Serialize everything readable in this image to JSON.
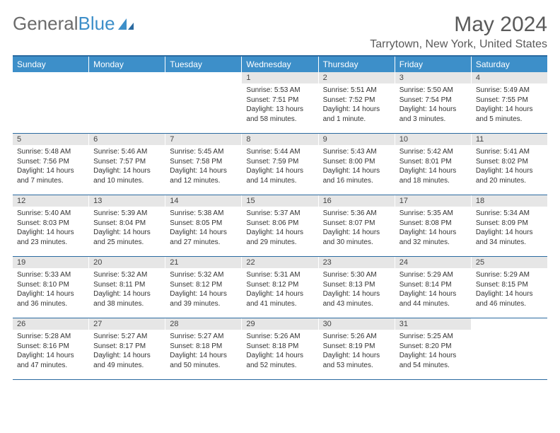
{
  "logo": {
    "text1": "General",
    "text2": "Blue"
  },
  "title": "May 2024",
  "location": "Tarrytown, New York, United States",
  "colors": {
    "header_bg": "#3d8fc9",
    "header_text": "#ffffff",
    "border": "#2a6aa0",
    "daynum_bg": "#e6e6e6",
    "logo_gray": "#6b6b6b",
    "logo_blue": "#3d8fc9",
    "title_color": "#5a5a5a"
  },
  "weekdays": [
    "Sunday",
    "Monday",
    "Tuesday",
    "Wednesday",
    "Thursday",
    "Friday",
    "Saturday"
  ],
  "weeks": [
    [
      {
        "n": "",
        "sr": "",
        "ss": "",
        "dl": ""
      },
      {
        "n": "",
        "sr": "",
        "ss": "",
        "dl": ""
      },
      {
        "n": "",
        "sr": "",
        "ss": "",
        "dl": ""
      },
      {
        "n": "1",
        "sr": "Sunrise: 5:53 AM",
        "ss": "Sunset: 7:51 PM",
        "dl": "Daylight: 13 hours and 58 minutes."
      },
      {
        "n": "2",
        "sr": "Sunrise: 5:51 AM",
        "ss": "Sunset: 7:52 PM",
        "dl": "Daylight: 14 hours and 1 minute."
      },
      {
        "n": "3",
        "sr": "Sunrise: 5:50 AM",
        "ss": "Sunset: 7:54 PM",
        "dl": "Daylight: 14 hours and 3 minutes."
      },
      {
        "n": "4",
        "sr": "Sunrise: 5:49 AM",
        "ss": "Sunset: 7:55 PM",
        "dl": "Daylight: 14 hours and 5 minutes."
      }
    ],
    [
      {
        "n": "5",
        "sr": "Sunrise: 5:48 AM",
        "ss": "Sunset: 7:56 PM",
        "dl": "Daylight: 14 hours and 7 minutes."
      },
      {
        "n": "6",
        "sr": "Sunrise: 5:46 AM",
        "ss": "Sunset: 7:57 PM",
        "dl": "Daylight: 14 hours and 10 minutes."
      },
      {
        "n": "7",
        "sr": "Sunrise: 5:45 AM",
        "ss": "Sunset: 7:58 PM",
        "dl": "Daylight: 14 hours and 12 minutes."
      },
      {
        "n": "8",
        "sr": "Sunrise: 5:44 AM",
        "ss": "Sunset: 7:59 PM",
        "dl": "Daylight: 14 hours and 14 minutes."
      },
      {
        "n": "9",
        "sr": "Sunrise: 5:43 AM",
        "ss": "Sunset: 8:00 PM",
        "dl": "Daylight: 14 hours and 16 minutes."
      },
      {
        "n": "10",
        "sr": "Sunrise: 5:42 AM",
        "ss": "Sunset: 8:01 PM",
        "dl": "Daylight: 14 hours and 18 minutes."
      },
      {
        "n": "11",
        "sr": "Sunrise: 5:41 AM",
        "ss": "Sunset: 8:02 PM",
        "dl": "Daylight: 14 hours and 20 minutes."
      }
    ],
    [
      {
        "n": "12",
        "sr": "Sunrise: 5:40 AM",
        "ss": "Sunset: 8:03 PM",
        "dl": "Daylight: 14 hours and 23 minutes."
      },
      {
        "n": "13",
        "sr": "Sunrise: 5:39 AM",
        "ss": "Sunset: 8:04 PM",
        "dl": "Daylight: 14 hours and 25 minutes."
      },
      {
        "n": "14",
        "sr": "Sunrise: 5:38 AM",
        "ss": "Sunset: 8:05 PM",
        "dl": "Daylight: 14 hours and 27 minutes."
      },
      {
        "n": "15",
        "sr": "Sunrise: 5:37 AM",
        "ss": "Sunset: 8:06 PM",
        "dl": "Daylight: 14 hours and 29 minutes."
      },
      {
        "n": "16",
        "sr": "Sunrise: 5:36 AM",
        "ss": "Sunset: 8:07 PM",
        "dl": "Daylight: 14 hours and 30 minutes."
      },
      {
        "n": "17",
        "sr": "Sunrise: 5:35 AM",
        "ss": "Sunset: 8:08 PM",
        "dl": "Daylight: 14 hours and 32 minutes."
      },
      {
        "n": "18",
        "sr": "Sunrise: 5:34 AM",
        "ss": "Sunset: 8:09 PM",
        "dl": "Daylight: 14 hours and 34 minutes."
      }
    ],
    [
      {
        "n": "19",
        "sr": "Sunrise: 5:33 AM",
        "ss": "Sunset: 8:10 PM",
        "dl": "Daylight: 14 hours and 36 minutes."
      },
      {
        "n": "20",
        "sr": "Sunrise: 5:32 AM",
        "ss": "Sunset: 8:11 PM",
        "dl": "Daylight: 14 hours and 38 minutes."
      },
      {
        "n": "21",
        "sr": "Sunrise: 5:32 AM",
        "ss": "Sunset: 8:12 PM",
        "dl": "Daylight: 14 hours and 39 minutes."
      },
      {
        "n": "22",
        "sr": "Sunrise: 5:31 AM",
        "ss": "Sunset: 8:12 PM",
        "dl": "Daylight: 14 hours and 41 minutes."
      },
      {
        "n": "23",
        "sr": "Sunrise: 5:30 AM",
        "ss": "Sunset: 8:13 PM",
        "dl": "Daylight: 14 hours and 43 minutes."
      },
      {
        "n": "24",
        "sr": "Sunrise: 5:29 AM",
        "ss": "Sunset: 8:14 PM",
        "dl": "Daylight: 14 hours and 44 minutes."
      },
      {
        "n": "25",
        "sr": "Sunrise: 5:29 AM",
        "ss": "Sunset: 8:15 PM",
        "dl": "Daylight: 14 hours and 46 minutes."
      }
    ],
    [
      {
        "n": "26",
        "sr": "Sunrise: 5:28 AM",
        "ss": "Sunset: 8:16 PM",
        "dl": "Daylight: 14 hours and 47 minutes."
      },
      {
        "n": "27",
        "sr": "Sunrise: 5:27 AM",
        "ss": "Sunset: 8:17 PM",
        "dl": "Daylight: 14 hours and 49 minutes."
      },
      {
        "n": "28",
        "sr": "Sunrise: 5:27 AM",
        "ss": "Sunset: 8:18 PM",
        "dl": "Daylight: 14 hours and 50 minutes."
      },
      {
        "n": "29",
        "sr": "Sunrise: 5:26 AM",
        "ss": "Sunset: 8:18 PM",
        "dl": "Daylight: 14 hours and 52 minutes."
      },
      {
        "n": "30",
        "sr": "Sunrise: 5:26 AM",
        "ss": "Sunset: 8:19 PM",
        "dl": "Daylight: 14 hours and 53 minutes."
      },
      {
        "n": "31",
        "sr": "Sunrise: 5:25 AM",
        "ss": "Sunset: 8:20 PM",
        "dl": "Daylight: 14 hours and 54 minutes."
      },
      {
        "n": "",
        "sr": "",
        "ss": "",
        "dl": ""
      }
    ]
  ]
}
